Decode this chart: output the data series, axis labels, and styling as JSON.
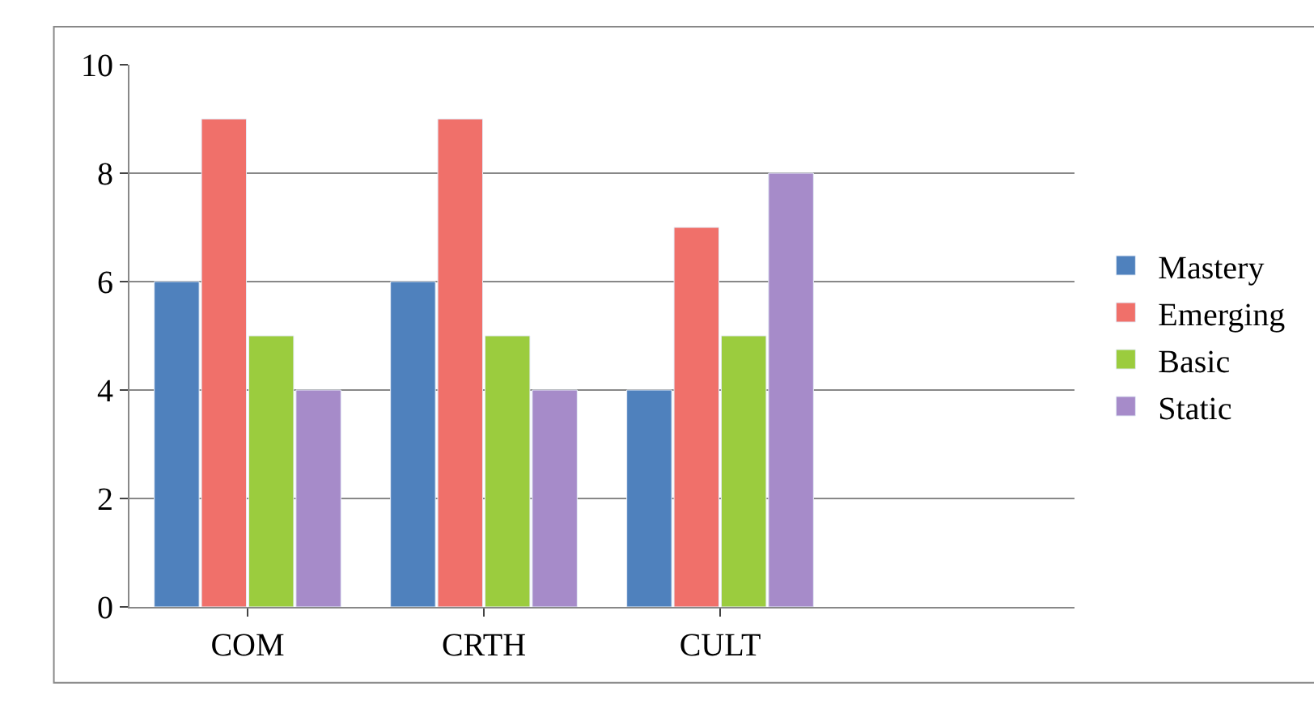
{
  "chart_data": {
    "type": "bar",
    "categories": [
      "COM",
      "CRTH",
      "CULT",
      null
    ],
    "series": [
      {
        "name": "Mastery",
        "color": "#4f81bd",
        "values": [
          6,
          6,
          4,
          null
        ]
      },
      {
        "name": "Emerging",
        "color": "#f0706a",
        "values": [
          9,
          9,
          7,
          null
        ]
      },
      {
        "name": "Basic",
        "color": "#9bcc3e",
        "values": [
          5,
          5,
          5,
          null
        ]
      },
      {
        "name": "Static",
        "color": "#a68bc9",
        "values": [
          4,
          4,
          8,
          null
        ]
      }
    ],
    "ylim": [
      0,
      10
    ],
    "yticks": [
      0,
      2,
      4,
      6,
      8,
      10
    ],
    "grid": "y",
    "legend": "right"
  }
}
